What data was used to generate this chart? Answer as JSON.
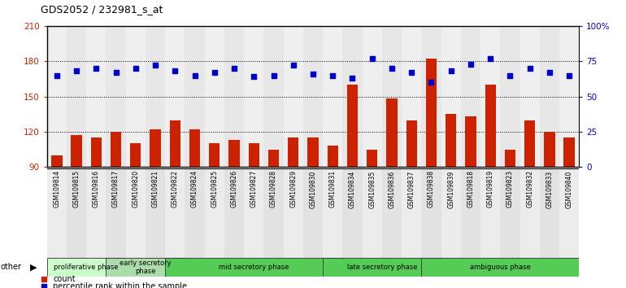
{
  "title": "GDS2052 / 232981_s_at",
  "samples": [
    "GSM109814",
    "GSM109815",
    "GSM109816",
    "GSM109817",
    "GSM109820",
    "GSM109821",
    "GSM109822",
    "GSM109824",
    "GSM109825",
    "GSM109826",
    "GSM109827",
    "GSM109828",
    "GSM109829",
    "GSM109830",
    "GSM109831",
    "GSM109834",
    "GSM109835",
    "GSM109836",
    "GSM109837",
    "GSM109838",
    "GSM109839",
    "GSM109818",
    "GSM109819",
    "GSM109823",
    "GSM109832",
    "GSM109833",
    "GSM109840"
  ],
  "counts": [
    100,
    117,
    115,
    120,
    110,
    122,
    130,
    122,
    110,
    113,
    110,
    105,
    115,
    115,
    108,
    160,
    105,
    148,
    130,
    182,
    135,
    133,
    160,
    105,
    130,
    120,
    115
  ],
  "percentiles": [
    65,
    68,
    70,
    67,
    70,
    72,
    68,
    65,
    67,
    70,
    64,
    65,
    72,
    66,
    65,
    63,
    77,
    70,
    67,
    60,
    68,
    73,
    77,
    65,
    70,
    67,
    65
  ],
  "ylim_left": [
    90,
    210
  ],
  "ylim_right": [
    0,
    100
  ],
  "yticks_left": [
    90,
    120,
    150,
    180,
    210
  ],
  "yticks_right": [
    0,
    25,
    50,
    75,
    100
  ],
  "ytick_labels_right": [
    "0",
    "25",
    "50",
    "75",
    "100%"
  ],
  "bar_color": "#cc2200",
  "dot_color": "#0000cc",
  "phases_def": [
    {
      "label": "proliferative phase",
      "start": 0,
      "end": 3,
      "color": "#ccffcc"
    },
    {
      "label": "early secretory\nphase",
      "start": 3,
      "end": 6,
      "color": "#aaddaa"
    },
    {
      "label": "mid secretory phase",
      "start": 6,
      "end": 14,
      "color": "#55cc55"
    },
    {
      "label": "late secretory phase",
      "start": 14,
      "end": 19,
      "color": "#55cc55"
    },
    {
      "label": "ambiguous phase",
      "start": 19,
      "end": 26,
      "color": "#55cc55"
    }
  ],
  "background_color": "#ffffff",
  "col_bg_even": "#e8e8e8",
  "col_bg_odd": "#d8d8d8"
}
